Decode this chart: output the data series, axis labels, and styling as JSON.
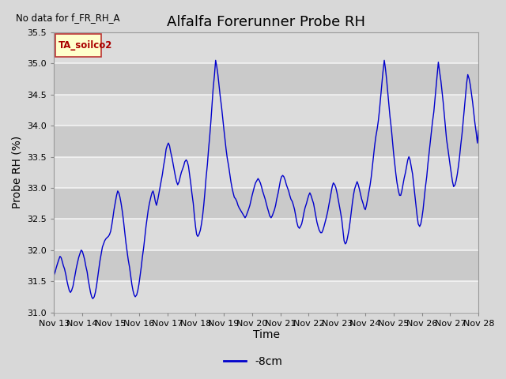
{
  "title": "Alfalfa Forerunner Probe RH",
  "no_data_label": "No data for f_FR_RH_A",
  "ylabel": "Probe RH (%)",
  "xlabel": "Time",
  "legend_label": "-8cm",
  "legend_label2": "TA_soilco2",
  "ylim": [
    31.0,
    35.5
  ],
  "xlim_start": 13,
  "xlim_end": 28,
  "xtick_labels": [
    "Nov 13",
    "Nov 14",
    "Nov 15",
    "Nov 16",
    "Nov 17",
    "Nov 18",
    "Nov 19",
    "Nov 20",
    "Nov 21",
    "Nov 22",
    "Nov 23",
    "Nov 24",
    "Nov 25",
    "Nov 26",
    "Nov 27",
    "Nov 28"
  ],
  "line_color": "#0000cc",
  "bg_color": "#d8d8d8",
  "plot_bg_color": "#dcdcdc",
  "title_fontsize": 13,
  "axis_fontsize": 10,
  "tick_fontsize": 8,
  "x_data": [
    13.0,
    13.04,
    13.08,
    13.12,
    13.17,
    13.21,
    13.25,
    13.29,
    13.33,
    13.37,
    13.42,
    13.46,
    13.5,
    13.54,
    13.58,
    13.62,
    13.67,
    13.71,
    13.75,
    13.79,
    13.83,
    13.87,
    13.92,
    13.96,
    14.0,
    14.04,
    14.08,
    14.12,
    14.17,
    14.21,
    14.25,
    14.29,
    14.33,
    14.37,
    14.42,
    14.46,
    14.5,
    14.54,
    14.58,
    14.62,
    14.67,
    14.71,
    14.75,
    14.79,
    14.83,
    14.87,
    14.92,
    14.96,
    15.0,
    15.04,
    15.08,
    15.12,
    15.17,
    15.21,
    15.25,
    15.29,
    15.33,
    15.37,
    15.42,
    15.46,
    15.5,
    15.54,
    15.58,
    15.62,
    15.67,
    15.71,
    15.75,
    15.79,
    15.83,
    15.87,
    15.92,
    15.96,
    16.0,
    16.04,
    16.08,
    16.12,
    16.17,
    16.21,
    16.25,
    16.29,
    16.33,
    16.37,
    16.42,
    16.46,
    16.5,
    16.54,
    16.58,
    16.62,
    16.67,
    16.71,
    16.75,
    16.79,
    16.83,
    16.87,
    16.92,
    16.96,
    17.0,
    17.04,
    17.08,
    17.12,
    17.17,
    17.21,
    17.25,
    17.29,
    17.33,
    17.37,
    17.42,
    17.46,
    17.5,
    17.54,
    17.58,
    17.62,
    17.67,
    17.71,
    17.75,
    17.79,
    17.83,
    17.87,
    17.92,
    17.96,
    18.0,
    18.04,
    18.08,
    18.12,
    18.17,
    18.21,
    18.25,
    18.29,
    18.33,
    18.37,
    18.42,
    18.46,
    18.5,
    18.54,
    18.58,
    18.62,
    18.67,
    18.71,
    18.75,
    18.79,
    18.83,
    18.87,
    18.92,
    18.96,
    19.0,
    19.04,
    19.08,
    19.12,
    19.17,
    19.21,
    19.25,
    19.29,
    19.33,
    19.37,
    19.42,
    19.46,
    19.5,
    19.54,
    19.58,
    19.62,
    19.67,
    19.71,
    19.75,
    19.79,
    19.83,
    19.87,
    19.92,
    19.96,
    20.0,
    20.04,
    20.08,
    20.12,
    20.17,
    20.21,
    20.25,
    20.29,
    20.33,
    20.37,
    20.42,
    20.46,
    20.5,
    20.54,
    20.58,
    20.62,
    20.67,
    20.71,
    20.75,
    20.79,
    20.83,
    20.87,
    20.92,
    20.96,
    21.0,
    21.04,
    21.08,
    21.12,
    21.17,
    21.21,
    21.25,
    21.29,
    21.33,
    21.37,
    21.42,
    21.46,
    21.5,
    21.54,
    21.58,
    21.62,
    21.67,
    21.71,
    21.75,
    21.79,
    21.83,
    21.87,
    21.92,
    21.96,
    22.0,
    22.04,
    22.08,
    22.12,
    22.17,
    22.21,
    22.25,
    22.29,
    22.33,
    22.37,
    22.42,
    22.46,
    22.5,
    22.54,
    22.58,
    22.62,
    22.67,
    22.71,
    22.75,
    22.79,
    22.83,
    22.87,
    22.92,
    22.96,
    23.0,
    23.04,
    23.08,
    23.12,
    23.17,
    23.21,
    23.25,
    23.29,
    23.33,
    23.37,
    23.42,
    23.46,
    23.5,
    23.54,
    23.58,
    23.62,
    23.67,
    23.71,
    23.75,
    23.79,
    23.83,
    23.87,
    23.92,
    23.96,
    24.0,
    24.04,
    24.08,
    24.12,
    24.17,
    24.21,
    24.25,
    24.29,
    24.33,
    24.37,
    24.42,
    24.46,
    24.5,
    24.54,
    24.58,
    24.62,
    24.67,
    24.71,
    24.75,
    24.79,
    24.83,
    24.87,
    24.92,
    24.96,
    25.0,
    25.04,
    25.08,
    25.12,
    25.17,
    25.21,
    25.25,
    25.29,
    25.33,
    25.37,
    25.42,
    25.46,
    25.5,
    25.54,
    25.58,
    25.62,
    25.67,
    25.71,
    25.75,
    25.79,
    25.83,
    25.87,
    25.92,
    25.96,
    26.0,
    26.04,
    26.08,
    26.12,
    26.17,
    26.21,
    26.25,
    26.29,
    26.33,
    26.37,
    26.42,
    26.46,
    26.5,
    26.54,
    26.58,
    26.62,
    26.67,
    26.71,
    26.75,
    26.79,
    26.83,
    26.87,
    26.92,
    26.96,
    27.0,
    27.04,
    27.08,
    27.12,
    27.17,
    27.21,
    27.25,
    27.29,
    27.33,
    27.37,
    27.42,
    27.46,
    27.5,
    27.54,
    27.58,
    27.62,
    27.67,
    27.71,
    27.75,
    27.79,
    27.83,
    27.87,
    27.92,
    27.96,
    28.0
  ],
  "y_data": [
    31.6,
    31.65,
    31.72,
    31.78,
    31.85,
    31.9,
    31.88,
    31.82,
    31.75,
    31.7,
    31.6,
    31.5,
    31.42,
    31.35,
    31.32,
    31.35,
    31.42,
    31.52,
    31.62,
    31.72,
    31.8,
    31.88,
    31.95,
    32.0,
    31.98,
    31.92,
    31.85,
    31.75,
    31.65,
    31.52,
    31.42,
    31.32,
    31.25,
    31.22,
    31.25,
    31.32,
    31.42,
    31.55,
    31.68,
    31.82,
    31.95,
    32.05,
    32.1,
    32.15,
    32.18,
    32.2,
    32.22,
    32.25,
    32.3,
    32.4,
    32.52,
    32.65,
    32.78,
    32.88,
    32.95,
    32.92,
    32.85,
    32.75,
    32.6,
    32.45,
    32.28,
    32.12,
    31.98,
    31.85,
    31.72,
    31.58,
    31.45,
    31.35,
    31.28,
    31.25,
    31.28,
    31.35,
    31.45,
    31.58,
    31.72,
    31.88,
    32.05,
    32.22,
    32.38,
    32.52,
    32.65,
    32.75,
    32.85,
    32.92,
    32.95,
    32.88,
    32.78,
    32.72,
    32.82,
    32.92,
    33.02,
    33.12,
    33.22,
    33.35,
    33.48,
    33.62,
    33.68,
    33.72,
    33.68,
    33.58,
    33.48,
    33.38,
    33.28,
    33.18,
    33.1,
    33.05,
    33.1,
    33.18,
    33.25,
    33.3,
    33.35,
    33.42,
    33.45,
    33.42,
    33.35,
    33.22,
    33.08,
    32.92,
    32.75,
    32.55,
    32.38,
    32.25,
    32.22,
    32.25,
    32.32,
    32.42,
    32.55,
    32.72,
    32.92,
    33.15,
    33.38,
    33.62,
    33.82,
    34.05,
    34.32,
    34.58,
    34.82,
    35.05,
    34.95,
    34.82,
    34.65,
    34.48,
    34.3,
    34.12,
    33.95,
    33.78,
    33.62,
    33.48,
    33.35,
    33.22,
    33.1,
    33.0,
    32.92,
    32.85,
    32.82,
    32.78,
    32.72,
    32.68,
    32.65,
    32.62,
    32.58,
    32.55,
    32.52,
    32.55,
    32.6,
    32.65,
    32.72,
    32.8,
    32.88,
    32.95,
    33.02,
    33.08,
    33.12,
    33.15,
    33.12,
    33.08,
    33.02,
    32.95,
    32.88,
    32.82,
    32.75,
    32.68,
    32.62,
    32.55,
    32.52,
    32.55,
    32.6,
    32.65,
    32.72,
    32.82,
    32.92,
    33.02,
    33.12,
    33.18,
    33.2,
    33.18,
    33.12,
    33.05,
    33.0,
    32.95,
    32.88,
    32.82,
    32.78,
    32.72,
    32.65,
    32.55,
    32.45,
    32.38,
    32.35,
    32.38,
    32.42,
    32.5,
    32.6,
    32.68,
    32.75,
    32.82,
    32.88,
    32.92,
    32.88,
    32.82,
    32.75,
    32.65,
    32.55,
    32.45,
    32.38,
    32.32,
    32.28,
    32.28,
    32.32,
    32.38,
    32.45,
    32.52,
    32.62,
    32.72,
    32.82,
    32.92,
    33.02,
    33.08,
    33.05,
    33.0,
    32.92,
    32.82,
    32.72,
    32.62,
    32.48,
    32.32,
    32.15,
    32.1,
    32.12,
    32.2,
    32.32,
    32.45,
    32.6,
    32.75,
    32.88,
    32.98,
    33.05,
    33.1,
    33.05,
    32.98,
    32.9,
    32.82,
    32.75,
    32.68,
    32.65,
    32.72,
    32.82,
    32.92,
    33.05,
    33.18,
    33.35,
    33.52,
    33.68,
    33.82,
    33.95,
    34.08,
    34.25,
    34.45,
    34.65,
    34.85,
    35.05,
    34.92,
    34.75,
    34.55,
    34.35,
    34.15,
    33.95,
    33.75,
    33.55,
    33.38,
    33.22,
    33.08,
    32.95,
    32.88,
    32.88,
    32.95,
    33.05,
    33.15,
    33.25,
    33.35,
    33.45,
    33.5,
    33.45,
    33.35,
    33.22,
    33.05,
    32.88,
    32.72,
    32.55,
    32.42,
    32.38,
    32.42,
    32.52,
    32.65,
    32.82,
    33.0,
    33.18,
    33.38,
    33.55,
    33.72,
    33.88,
    34.05,
    34.22,
    34.42,
    34.62,
    34.82,
    35.02,
    34.88,
    34.72,
    34.55,
    34.38,
    34.18,
    33.98,
    33.78,
    33.62,
    33.48,
    33.35,
    33.22,
    33.1,
    33.02,
    33.05,
    33.12,
    33.22,
    33.35,
    33.5,
    33.68,
    33.88,
    34.08,
    34.28,
    34.48,
    34.68,
    34.82,
    34.75,
    34.65,
    34.52,
    34.38,
    34.22,
    34.05,
    33.88,
    33.72,
    33.92
  ]
}
